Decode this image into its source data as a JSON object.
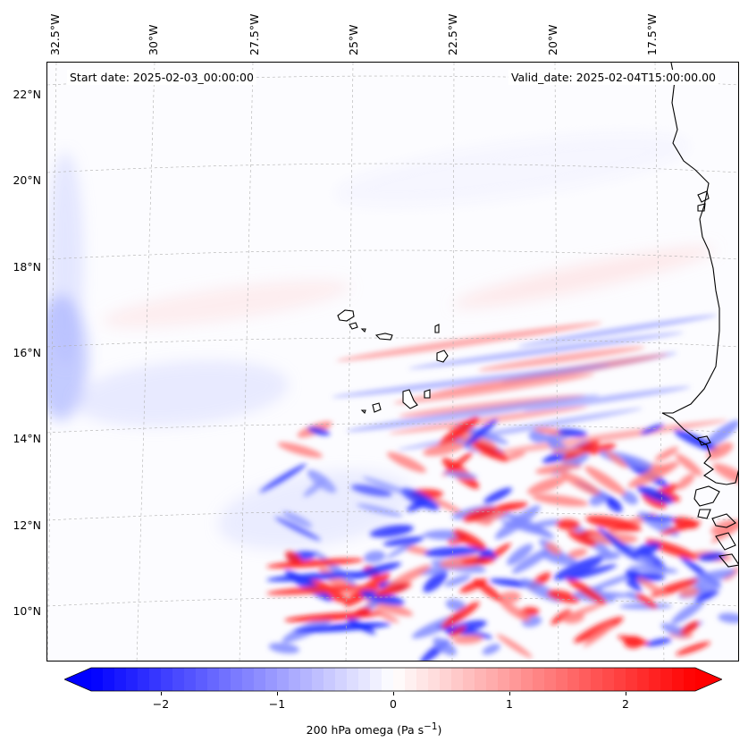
{
  "map": {
    "region": "Eastern tropical North Atlantic, Cape Verde",
    "lon_labels": [
      "32.5°W",
      "30°W",
      "27.5°W",
      "25°W",
      "22.5°W",
      "20°W",
      "17.5°W"
    ],
    "lat_labels": [
      "22°N",
      "20°N",
      "18°N",
      "16°N",
      "14°N",
      "12°N",
      "10°N"
    ],
    "start_date": "Start date: 2025-02-03_00:00:00",
    "valid_date": "Valid_date: 2025-02-04T15:00:00.00"
  },
  "colorbar": {
    "min": -2.6,
    "max": 2.6,
    "ticks": [
      "−2",
      "−1",
      "0",
      "1",
      "2"
    ],
    "tick_values": [
      -2,
      -1,
      0,
      1,
      2
    ],
    "label": "200 hPa omega (Pa s",
    "label_sup": "−1",
    "label_end": ")",
    "colors": {
      "negative": "#0000ff",
      "zero": "#ffffff",
      "positive": "#ff0000"
    }
  }
}
